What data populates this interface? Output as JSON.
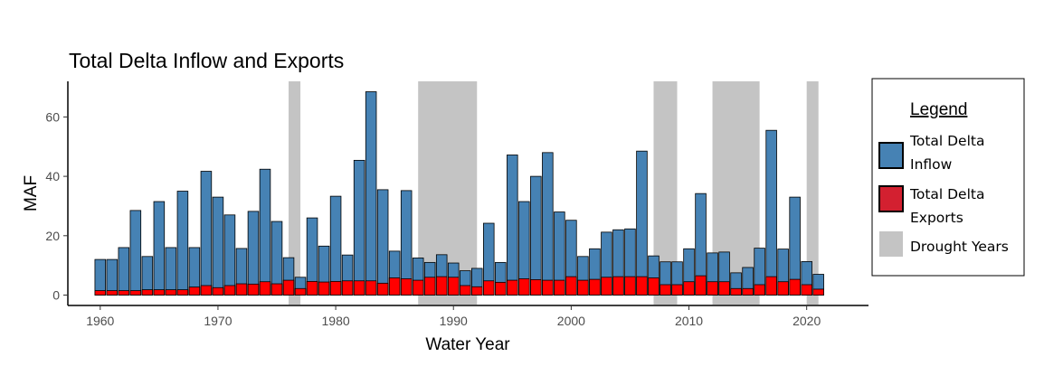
{
  "chart_data": {
    "type": "bar",
    "title": "Total Delta Inflow and Exports",
    "xlabel": "Water Year",
    "ylabel": "MAF",
    "xlim": [
      1958.5,
      1962.5
    ],
    "x_range": [
      1957.25,
      2025.25
    ],
    "ylim": [
      -3.5,
      72
    ],
    "x_ticks": [
      1960,
      1970,
      1980,
      1990,
      2000,
      2010,
      2020
    ],
    "y_ticks": [
      0,
      20,
      40,
      60
    ],
    "legend_position": "right",
    "legend": {
      "title": "Legend",
      "entries": [
        {
          "key": "inflow",
          "lines": [
            "Total Delta",
            "Inflow"
          ],
          "color": "#4682B4"
        },
        {
          "key": "exports",
          "lines": [
            "Total Delta",
            "Exports"
          ],
          "color": "#D32030"
        },
        {
          "key": "drought",
          "lines": [
            "Drought Years"
          ],
          "color": "#C4C4C4"
        }
      ]
    },
    "drought_periods": [
      {
        "start": 1976,
        "end": 1977
      },
      {
        "start": 1987,
        "end": 1992
      },
      {
        "start": 2007,
        "end": 2009
      },
      {
        "start": 2012,
        "end": 2016
      },
      {
        "start": 2020,
        "end": 2021
      }
    ],
    "years": [
      1960,
      1961,
      1962,
      1963,
      1964,
      1965,
      1966,
      1967,
      1968,
      1969,
      1970,
      1971,
      1972,
      1973,
      1974,
      1975,
      1976,
      1977,
      1978,
      1979,
      1980,
      1981,
      1982,
      1983,
      1984,
      1985,
      1986,
      1987,
      1988,
      1989,
      1990,
      1991,
      1992,
      1993,
      1994,
      1995,
      1996,
      1997,
      1998,
      1999,
      2000,
      2001,
      2002,
      2003,
      2004,
      2005,
      2006,
      2007,
      2008,
      2009,
      2010,
      2011,
      2012,
      2013,
      2014,
      2015,
      2016,
      2017,
      2018,
      2019,
      2020,
      2021
    ],
    "series": [
      {
        "name": "Total Delta Inflow",
        "color": "#4682B4",
        "values": [
          12,
          12,
          16,
          28.5,
          13,
          31.5,
          16,
          35,
          16,
          41.7,
          33,
          27,
          15.7,
          28.2,
          42.4,
          24.8,
          12.6,
          6,
          26,
          16.5,
          33.3,
          13.5,
          45.4,
          68.5,
          35.5,
          14.8,
          35.2,
          12.5,
          11,
          13.6,
          10.8,
          8.2,
          9,
          24.2,
          11,
          47.2,
          31.5,
          40,
          48,
          28,
          25.2,
          13,
          15.6,
          21.2,
          22,
          22.3,
          48.5,
          13.2,
          11.2,
          11.2,
          15.6,
          34.2,
          14.2,
          14.5,
          7.5,
          9.3,
          15.8,
          55.5,
          15.5,
          33,
          11.3,
          7
        ],
        "stacked_overlay": false
      },
      {
        "name": "Total Delta Exports",
        "color": "#FF0000",
        "values": [
          1.5,
          1.5,
          1.5,
          1.5,
          1.8,
          1.8,
          1.8,
          1.8,
          2.7,
          3.2,
          2.5,
          3.2,
          3.8,
          3.7,
          4.5,
          3.8,
          5,
          2.2,
          4.6,
          4.4,
          4.6,
          4.8,
          4.8,
          4.8,
          4,
          5.8,
          5.5,
          5,
          6,
          6.2,
          6,
          3.2,
          2.8,
          4.8,
          4.3,
          5,
          5.5,
          5.2,
          5,
          5,
          6.2,
          5,
          5.3,
          6,
          6.2,
          6.2,
          6.2,
          5.8,
          3.5,
          3.5,
          4.5,
          6.5,
          4.5,
          4.5,
          2.2,
          2.2,
          3.5,
          6.2,
          4.5,
          5.3,
          3.5,
          2
        ]
      }
    ]
  }
}
